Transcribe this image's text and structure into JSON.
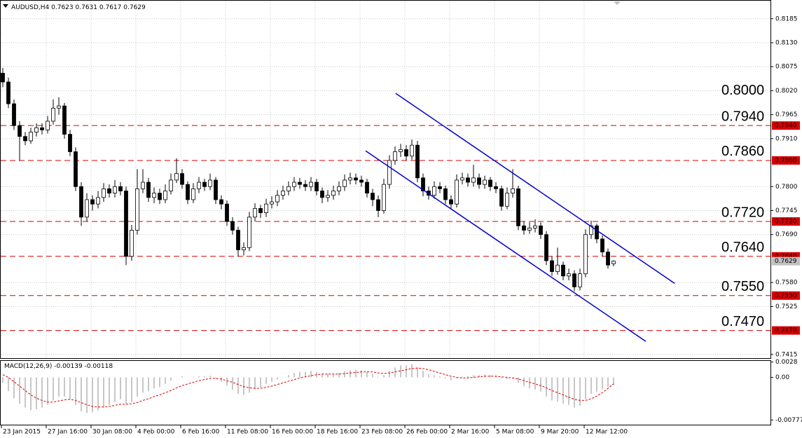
{
  "chart_data": [
    {
      "type": "candlestick",
      "title": "AUDUSD,H4",
      "grid": true,
      "bull_color": "#ffffff",
      "bear_color": "#000000",
      "outline_color": "#000000",
      "categories": [
        "23 Jan 2015",
        null,
        null,
        null,
        null,
        null,
        null,
        null,
        "27 Jan 16:00",
        null,
        null,
        null,
        null,
        null,
        null,
        null,
        "30 Jan 08:00",
        null,
        null,
        null,
        null,
        null,
        null,
        null,
        "4 Feb 00:00",
        null,
        null,
        null,
        null,
        null,
        null,
        null,
        "6 Feb 16:00",
        null,
        null,
        null,
        null,
        null,
        null,
        null,
        "11 Feb 08:00",
        null,
        null,
        null,
        null,
        null,
        null,
        null,
        "16 Feb 00:00",
        null,
        null,
        null,
        null,
        null,
        null,
        null,
        "18 Feb 16:00",
        null,
        null,
        null,
        null,
        null,
        null,
        null,
        "23 Feb 08:00",
        null,
        null,
        null,
        null,
        null,
        null,
        null,
        "26 Feb 00:00",
        null,
        null,
        null,
        null,
        null,
        null,
        null,
        "2 Mar 16:00",
        null,
        null,
        null,
        null,
        null,
        null,
        null,
        "5 Mar 08:00",
        null,
        null,
        null,
        null,
        null,
        null,
        null,
        "9 Mar 20:00",
        null,
        null,
        null,
        null,
        null,
        null,
        null,
        "12 Mar 12:00",
        null,
        null,
        null,
        null,
        null
      ],
      "open": [
        0.806,
        0.804,
        0.799,
        0.794,
        0.7915,
        0.7905,
        0.7925,
        0.7935,
        0.793,
        0.795,
        0.798,
        0.7985,
        0.792,
        0.788,
        0.78,
        0.773,
        0.777,
        0.776,
        0.7775,
        0.7795,
        0.7785,
        0.78,
        0.779,
        0.764,
        0.77,
        0.7795,
        0.781,
        0.7775,
        0.7785,
        0.777,
        0.779,
        0.7815,
        0.783,
        0.7805,
        0.777,
        0.7795,
        0.781,
        0.78,
        0.7815,
        0.777,
        0.776,
        0.772,
        0.77,
        0.7655,
        0.766,
        0.773,
        0.775,
        0.774,
        0.776,
        0.7765,
        0.778,
        0.779,
        0.78,
        0.781,
        0.7805,
        0.78,
        0.781,
        0.779,
        0.7775,
        0.778,
        0.779,
        0.78,
        0.7815,
        0.782,
        0.7815,
        0.781,
        0.7785,
        0.777,
        0.7745,
        0.7805,
        0.786,
        0.788,
        0.7885,
        0.787,
        0.7895,
        0.782,
        0.779,
        0.778,
        0.78,
        0.7795,
        0.777,
        0.776,
        0.7815,
        0.782,
        0.781,
        0.782,
        0.7805,
        0.7815,
        0.78,
        0.7795,
        0.7755,
        0.7785,
        0.7795,
        0.771,
        0.77,
        0.7705,
        0.771,
        0.769,
        0.763,
        0.7605,
        0.762,
        0.7595,
        0.76,
        0.757,
        0.76,
        0.769,
        0.771,
        0.768,
        0.765,
        0.7623
      ],
      "high": [
        0.8072,
        0.805,
        0.8,
        0.795,
        0.7925,
        0.7935,
        0.7945,
        0.7945,
        0.7962,
        0.8,
        0.8005,
        0.7992,
        0.793,
        0.789,
        0.781,
        0.7785,
        0.778,
        0.779,
        0.7808,
        0.7805,
        0.7815,
        0.781,
        0.78,
        0.7712,
        0.784,
        0.784,
        0.782,
        0.7798,
        0.7795,
        0.7805,
        0.783,
        0.7865,
        0.784,
        0.7812,
        0.7808,
        0.7822,
        0.7818,
        0.783,
        0.7822,
        0.778,
        0.7768,
        0.773,
        0.7708,
        0.7672,
        0.7742,
        0.7762,
        0.7758,
        0.7772,
        0.7778,
        0.7792,
        0.7802,
        0.7812,
        0.7822,
        0.782,
        0.7815,
        0.7822,
        0.7818,
        0.7798,
        0.7792,
        0.7802,
        0.7812,
        0.7828,
        0.7832,
        0.783,
        0.7825,
        0.7818,
        0.7795,
        0.778,
        0.7818,
        0.7872,
        0.7892,
        0.7898,
        0.7895,
        0.7908,
        0.7905,
        0.783,
        0.78,
        0.7812,
        0.781,
        0.7802,
        0.778,
        0.7828,
        0.7832,
        0.783,
        0.785,
        0.783,
        0.7825,
        0.7822,
        0.781,
        0.7802,
        0.7798,
        0.784,
        0.7802,
        0.772,
        0.7718,
        0.7725,
        0.7718,
        0.7698,
        0.764,
        0.766,
        0.7628,
        0.7612,
        0.7608,
        0.7612,
        0.7702,
        0.7722,
        0.7715,
        0.7688,
        0.7658,
        0.7631
      ],
      "low": [
        0.8028,
        0.798,
        0.793,
        0.786,
        0.7895,
        0.7898,
        0.7915,
        0.792,
        0.7922,
        0.7942,
        0.7965,
        0.791,
        0.787,
        0.779,
        0.771,
        0.772,
        0.7745,
        0.775,
        0.7765,
        0.7775,
        0.7775,
        0.778,
        0.762,
        0.763,
        0.769,
        0.7785,
        0.7765,
        0.7762,
        0.776,
        0.7762,
        0.7782,
        0.7808,
        0.7795,
        0.776,
        0.7762,
        0.7785,
        0.779,
        0.7792,
        0.776,
        0.7748,
        0.771,
        0.769,
        0.764,
        0.7642,
        0.7652,
        0.772,
        0.7728,
        0.773,
        0.775,
        0.7755,
        0.777,
        0.778,
        0.779,
        0.7795,
        0.779,
        0.779,
        0.778,
        0.7762,
        0.7765,
        0.777,
        0.778,
        0.779,
        0.7805,
        0.7805,
        0.78,
        0.7775,
        0.7755,
        0.773,
        0.7738,
        0.7795,
        0.785,
        0.7868,
        0.786,
        0.7862,
        0.781,
        0.7778,
        0.777,
        0.7772,
        0.7785,
        0.776,
        0.7748,
        0.7752,
        0.7805,
        0.78,
        0.78,
        0.7795,
        0.7795,
        0.779,
        0.7785,
        0.7745,
        0.7748,
        0.7775,
        0.77,
        0.769,
        0.7692,
        0.7695,
        0.768,
        0.762,
        0.7595,
        0.7598,
        0.7585,
        0.7585,
        0.756,
        0.7562,
        0.7592,
        0.768,
        0.767,
        0.764,
        0.7612,
        0.7617
      ],
      "close": [
        0.804,
        0.799,
        0.794,
        0.7915,
        0.7905,
        0.7925,
        0.7935,
        0.793,
        0.795,
        0.798,
        0.7985,
        0.792,
        0.788,
        0.78,
        0.773,
        0.777,
        0.776,
        0.7775,
        0.7795,
        0.7785,
        0.78,
        0.779,
        0.764,
        0.77,
        0.7795,
        0.781,
        0.7775,
        0.7785,
        0.777,
        0.779,
        0.7815,
        0.783,
        0.7805,
        0.777,
        0.7795,
        0.781,
        0.78,
        0.7815,
        0.777,
        0.776,
        0.772,
        0.77,
        0.7655,
        0.766,
        0.773,
        0.775,
        0.774,
        0.776,
        0.7765,
        0.778,
        0.779,
        0.78,
        0.781,
        0.7805,
        0.78,
        0.781,
        0.779,
        0.7775,
        0.778,
        0.779,
        0.78,
        0.7815,
        0.782,
        0.7815,
        0.781,
        0.7785,
        0.777,
        0.7745,
        0.7805,
        0.786,
        0.788,
        0.7885,
        0.787,
        0.7895,
        0.782,
        0.779,
        0.778,
        0.78,
        0.7795,
        0.777,
        0.776,
        0.7815,
        0.782,
        0.781,
        0.782,
        0.7805,
        0.7815,
        0.78,
        0.7795,
        0.7755,
        0.7785,
        0.7795,
        0.771,
        0.77,
        0.7705,
        0.771,
        0.769,
        0.763,
        0.7605,
        0.762,
        0.7595,
        0.76,
        0.757,
        0.76,
        0.769,
        0.771,
        0.768,
        0.765,
        0.762,
        0.7629
      ],
      "ylim": [
        0.7405,
        0.8228
      ],
      "yticks": [
        0.8185,
        {
          "value": 0.813,
          "label": "0.8130"
        },
        0.8075,
        {
          "value": 0.802,
          "label": "0.8020"
        },
        0.7965,
        {
          "value": 0.791,
          "label": "0.7910"
        },
        {
          "value": 0.78,
          "label": "0.7800"
        },
        0.7745,
        {
          "value": 0.769,
          "label": "0.7690"
        },
        {
          "value": 0.758,
          "label": "0.7580"
        },
        0.7525,
        0.7415
      ],
      "levels": [
        {
          "value": 0.8,
          "label": "0.8000",
          "line": false
        },
        {
          "value": 0.794,
          "label": "0.7940",
          "line": true
        },
        {
          "value": 0.786,
          "label": "0.7860",
          "line": true
        },
        {
          "value": 0.772,
          "label": "0.7720",
          "line": true
        },
        {
          "value": 0.764,
          "label": "0.7640",
          "line": true
        },
        {
          "value": 0.755,
          "label": "0.7550",
          "line": true
        },
        {
          "value": 0.747,
          "label": "0.7470",
          "line": true
        }
      ],
      "level_color": "#d40000",
      "level_label_color": "#f05a28",
      "trendlines": [
        {
          "color": "#0000cc",
          "x": [
            70.1,
            119.9
          ],
          "y": [
            0.8014,
            0.7578
          ]
        },
        {
          "color": "#0000cc",
          "x": [
            64.75,
            114.75
          ],
          "y": [
            0.7882,
            0.7445
          ]
        }
      ]
    },
    {
      "type": "macd",
      "title": "MACD(12,26,9)",
      "ylim": [
        -0.0085,
        0.003
      ],
      "yticks": [
        0.0028,
        {
          "value": 0,
          "label": "0.00"
        },
        -0.00777
      ],
      "series": [
        {
          "color": "#b4b4b4",
          "style": "histogram",
          "values": [
            -0.001,
            -0.0025,
            -0.0038,
            -0.0048,
            -0.0055,
            -0.006,
            -0.0058,
            -0.0055,
            -0.005,
            -0.0042,
            -0.0035,
            -0.0035,
            -0.004,
            -0.005,
            -0.0062,
            -0.0065,
            -0.0064,
            -0.006,
            -0.0055,
            -0.005,
            -0.0045,
            -0.004,
            -0.0048,
            -0.0045,
            -0.0035,
            -0.0028,
            -0.0025,
            -0.002,
            -0.0018,
            -0.0012,
            -0.0006,
            0.0,
            0.0002,
            0.0,
            0.0001,
            0.0002,
            0.0002,
            0.0003,
            -0.0002,
            -0.0008,
            -0.0015,
            -0.0022,
            -0.003,
            -0.0032,
            -0.0028,
            -0.0022,
            -0.0018,
            -0.0012,
            -0.0008,
            -0.0004,
            0.0,
            0.0004,
            0.0008,
            0.001,
            0.001,
            0.0012,
            0.001,
            0.0007,
            0.0006,
            0.0006,
            0.0008,
            0.0011,
            0.0013,
            0.0014,
            0.0013,
            0.001,
            0.0006,
            0.0001,
            0.0004,
            0.0012,
            0.0018,
            0.0022,
            0.0022,
            0.0024,
            0.0018,
            0.0012,
            0.0006,
            0.0004,
            0.0002,
            -0.0002,
            -0.0005,
            -0.0002,
            0.0001,
            0.0002,
            0.0004,
            0.0004,
            0.0005,
            0.0004,
            0.0003,
            -0.0002,
            -0.0003,
            -0.0002,
            -0.001,
            -0.0016,
            -0.002,
            -0.0022,
            -0.0026,
            -0.0035,
            -0.0042,
            -0.0044,
            -0.0048,
            -0.005,
            -0.0055,
            -0.0052,
            -0.004,
            -0.003,
            -0.0026,
            -0.0022,
            -0.0018,
            -0.00139
          ]
        },
        {
          "color": "#e00000",
          "style": "dashed",
          "values": [
            0.0005,
            0.0,
            -0.0008,
            -0.0016,
            -0.0024,
            -0.0032,
            -0.0038,
            -0.0042,
            -0.0045,
            -0.0045,
            -0.0043,
            -0.0041,
            -0.004,
            -0.0042,
            -0.0046,
            -0.005,
            -0.0053,
            -0.0054,
            -0.0054,
            -0.0053,
            -0.0051,
            -0.0049,
            -0.0049,
            -0.0048,
            -0.0046,
            -0.0042,
            -0.0039,
            -0.0035,
            -0.0032,
            -0.0028,
            -0.0024,
            -0.0019,
            -0.0015,
            -0.0012,
            -0.0009,
            -0.0006,
            -0.0004,
            -0.0002,
            -0.0002,
            -0.0003,
            -0.0006,
            -0.0009,
            -0.0013,
            -0.0017,
            -0.0019,
            -0.002,
            -0.002,
            -0.0018,
            -0.0016,
            -0.0013,
            -0.001,
            -0.0007,
            -0.0004,
            -0.0001,
            0.0001,
            0.0003,
            0.0005,
            0.0006,
            0.0006,
            0.0006,
            0.0006,
            0.0007,
            0.0008,
            0.0009,
            0.001,
            0.001,
            0.001,
            0.0008,
            0.0007,
            0.0008,
            0.001,
            0.0012,
            0.0014,
            0.0016,
            0.0017,
            0.0016,
            0.0014,
            0.0011,
            0.0008,
            0.0005,
            0.0002,
            0.0,
            -0.0001,
            -0.0001,
            0.0,
            0.0001,
            0.0002,
            0.0002,
            0.0002,
            0.0001,
            0.0,
            -0.0001,
            -0.0003,
            -0.0006,
            -0.0009,
            -0.0012,
            -0.0015,
            -0.0019,
            -0.0024,
            -0.0028,
            -0.0032,
            -0.0036,
            -0.004,
            -0.0042,
            -0.0042,
            -0.0039,
            -0.0034,
            -0.0028,
            -0.002,
            -0.00118
          ]
        }
      ]
    }
  ]
}
